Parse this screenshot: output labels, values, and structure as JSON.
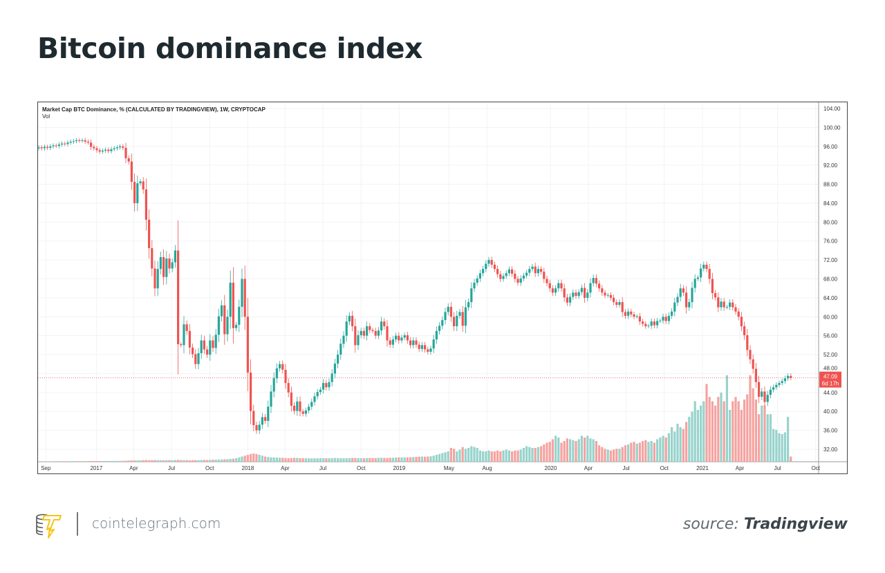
{
  "title": "Bitcoin dominance index",
  "footer": {
    "site": "cointelegraph.com",
    "source_prefix": "source:",
    "source_name": "Tradingview"
  },
  "chart_data": {
    "type": "candlestick",
    "title": "Market Cap BTC Dominance, % (CALCULATED BY TRADINGVIEW), 1W, CRYPTOCAP",
    "volume_label": "Vol",
    "interval": "1W",
    "start_week": "2016-08-15",
    "ylim": [
      32,
      104
    ],
    "yticks": [
      "104.00",
      "100.00",
      "96.00",
      "92.00",
      "88.00",
      "84.00",
      "80.00",
      "76.00",
      "72.00",
      "68.00",
      "64.00",
      "60.00",
      "56.00",
      "52.00",
      "48.00",
      "44.00",
      "40.00",
      "36.00",
      "32.00"
    ],
    "xticks": [
      "Sep",
      "2017",
      "Apr",
      "Jul",
      "Oct",
      "2018",
      "Apr",
      "Jul",
      "Oct",
      "2019",
      "May",
      "Aug",
      "2020",
      "Apr",
      "Jul",
      "Oct",
      "2021",
      "Apr",
      "Jul",
      "Oct"
    ],
    "xtick_dates": [
      "2016-09-01",
      "2017-01-01",
      "2017-04-01",
      "2017-07-01",
      "2017-10-01",
      "2018-01-01",
      "2018-04-01",
      "2018-07-01",
      "2018-10-01",
      "2019-01-01",
      "2019-05-01",
      "2019-08-01",
      "2020-01-01",
      "2020-04-01",
      "2020-07-01",
      "2020-10-01",
      "2021-01-01",
      "2021-04-01",
      "2021-07-01",
      "2021-10-01"
    ],
    "last_price": "47.09",
    "countdown": "6d 17h",
    "colors": {
      "up": "#26a69a",
      "down": "#ef5350",
      "up_vol": "#97d3cc",
      "down_vol": "#f5a3a0",
      "last_line": "#ef5350"
    },
    "closes": [
      95.8,
      95.6,
      95.9,
      95.7,
      96.0,
      96.2,
      96.1,
      96.4,
      96.6,
      96.5,
      96.8,
      97.0,
      97.1,
      97.3,
      97.2,
      97.3,
      97.0,
      96.8,
      95.9,
      95.6,
      95.2,
      94.9,
      95.1,
      95.3,
      95.0,
      95.4,
      95.6,
      95.8,
      96.0,
      95.7,
      93.5,
      92.8,
      88.5,
      84.0,
      88.2,
      88.6,
      86.9,
      80.5,
      74.5,
      70.2,
      66.0,
      70.1,
      72.6,
      68.4,
      72.3,
      70.2,
      71.5,
      74.0,
      54.2,
      54.0,
      58.4,
      57.0,
      53.5,
      52.1,
      50.0,
      52.3,
      55.0,
      53.1,
      52.0,
      55.0,
      53.4,
      56.2,
      60.1,
      62.4,
      56.3,
      60.0,
      67.2,
      57.6,
      58.3,
      62.1,
      68.0,
      60.0,
      48.2,
      40.1,
      37.1,
      36.0,
      37.2,
      38.8,
      38.0,
      41.0,
      44.2,
      47.0,
      49.1,
      50.0,
      48.8,
      46.0,
      44.0,
      41.2,
      40.1,
      42.1,
      40.0,
      39.5,
      40.2,
      41.0,
      42.0,
      43.2,
      44.1,
      44.6,
      46.0,
      45.1,
      46.2,
      48.0,
      50.1,
      52.0,
      54.3,
      56.0,
      59.0,
      60.2,
      58.0,
      54.0,
      56.1,
      57.0,
      56.0,
      58.0,
      57.2,
      57.0,
      56.0,
      57.1,
      59.0,
      58.0,
      55.0,
      54.1,
      55.2,
      56.0,
      55.0,
      55.6,
      56.1,
      55.0,
      54.0,
      55.0,
      54.1,
      53.2,
      54.0,
      53.1,
      52.6,
      53.3,
      55.2,
      57.0,
      58.1,
      59.3,
      61.0,
      62.1,
      60.0,
      58.0,
      60.2,
      61.0,
      58.1,
      62.0,
      63.1,
      66.0,
      67.2,
      68.1,
      69.2,
      70.1,
      71.2,
      72.0,
      71.0,
      70.1,
      69.0,
      68.0,
      68.6,
      69.2,
      70.0,
      69.1,
      68.0,
      67.2,
      68.1,
      68.7,
      69.3,
      70.1,
      70.6,
      69.2,
      70.1,
      69.5,
      68.0,
      67.1,
      66.0,
      65.1,
      66.0,
      67.1,
      66.0,
      64.1,
      63.0,
      64.2,
      65.1,
      64.4,
      65.2,
      66.1,
      64.0,
      65.1,
      67.1,
      68.2,
      67.0,
      66.0,
      65.1,
      64.5,
      64.6,
      64.0,
      63.1,
      62.5,
      63.1,
      61.0,
      60.2,
      61.1,
      60.5,
      60.0,
      60.1,
      59.0,
      58.5,
      58.0,
      58.1,
      59.0,
      58.2,
      59.1,
      59.2,
      60.0,
      59.1,
      60.2,
      61.1,
      63.0,
      64.2,
      66.0,
      65.1,
      62.0,
      63.1,
      66.1,
      68.0,
      68.3,
      70.2,
      71.0,
      70.1,
      68.0,
      65.0,
      64.1,
      62.0,
      63.2,
      62.0,
      62.1,
      63.0,
      62.0,
      61.1,
      60.0,
      58.0,
      56.1,
      53.0,
      51.0,
      49.0,
      46.2,
      43.1,
      44.2,
      42.0,
      43.5,
      44.6,
      45.1,
      45.6,
      46.0,
      46.4,
      47.0,
      47.5,
      47.09
    ],
    "volume_relative": [
      0.5,
      0.5,
      0.5,
      0.5,
      0.5,
      0.6,
      0.6,
      0.6,
      0.6,
      0.6,
      0.6,
      0.6,
      0.7,
      0.7,
      0.7,
      0.7,
      0.7,
      0.7,
      0.8,
      0.8,
      0.8,
      0.8,
      0.8,
      0.8,
      0.8,
      0.9,
      0.9,
      0.9,
      1,
      1,
      1.2,
      1.3,
      1.5,
      1.6,
      1.5,
      1.6,
      1.8,
      2,
      1.8,
      1.9,
      2,
      1.9,
      1.8,
      1.7,
      1.8,
      1.9,
      1.8,
      2,
      2.2,
      2,
      1.9,
      1.8,
      1.7,
      1.8,
      1.9,
      1.8,
      2,
      2.1,
      2,
      2.2,
      2.3,
      2.4,
      2.5,
      2.6,
      2.8,
      3,
      3.2,
      3.5,
      4,
      5,
      6,
      7,
      8,
      9,
      9.5,
      9,
      8,
      7,
      6,
      5.5,
      5,
      5,
      4.8,
      4.6,
      4.5,
      4.2,
      4,
      4.2,
      4.5,
      4.4,
      4.2,
      4,
      4.1,
      4,
      3.9,
      4,
      4.1,
      4.2,
      4.1,
      4,
      4,
      4.2,
      4.3,
      4.2,
      4.1,
      4,
      4.1,
      4.2,
      4.4,
      4.3,
      4.2,
      4.1,
      4,
      4.2,
      4.4,
      4.3,
      4.2,
      4.5,
      4.6,
      4.4,
      4.3,
      4.5,
      4.6,
      4.8,
      5,
      4.9,
      5,
      5.1,
      5.2,
      5.4,
      5.6,
      5.8,
      6,
      5.8,
      6,
      6.2,
      7,
      8,
      9,
      10,
      11,
      12,
      16,
      15,
      12,
      14,
      17,
      15,
      16,
      18,
      17,
      16,
      13,
      12,
      12,
      13,
      12,
      12,
      13,
      12,
      13,
      14,
      13,
      12,
      13,
      13,
      14,
      16,
      18,
      17,
      16,
      16,
      17,
      18,
      20,
      22,
      23,
      26,
      30,
      28,
      22,
      24,
      27,
      26,
      25,
      24,
      26,
      30,
      28,
      30,
      27,
      26,
      24,
      19,
      17,
      15,
      14,
      13,
      14,
      15,
      15,
      17,
      19,
      20,
      22,
      23,
      21,
      22,
      24,
      25,
      23,
      24,
      22,
      26,
      28,
      30,
      28,
      33,
      40,
      35,
      44,
      40,
      38,
      46,
      52,
      58,
      70,
      60,
      65,
      70,
      90,
      75,
      70,
      65,
      75,
      80,
      70,
      100,
      60,
      70,
      75,
      70,
      60,
      72,
      78,
      100,
      85,
      72,
      55,
      65,
      65,
      55,
      55,
      38,
      37,
      33,
      32,
      34,
      52,
      6
    ]
  }
}
